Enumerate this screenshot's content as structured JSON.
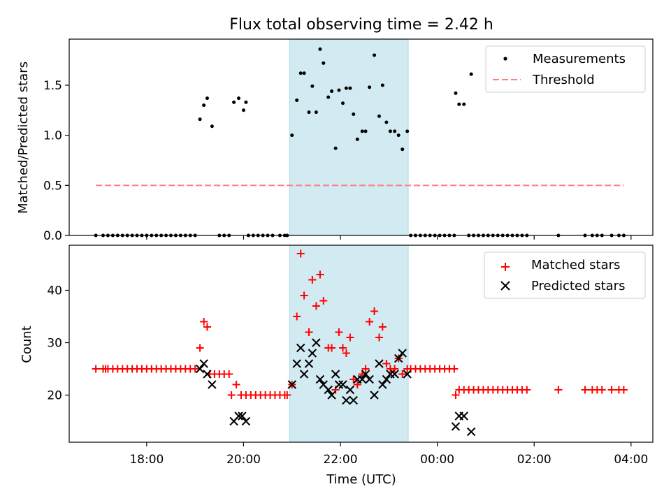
{
  "chart_data": [
    {
      "type": "scatter",
      "title": "Flux total observing time = 2.42 h",
      "xlabel": "",
      "ylabel": "Matched/Predicted stars",
      "ylim": [
        0,
        1.96
      ],
      "yticks": [
        "0.0",
        "0.5",
        "1.0",
        "1.5"
      ],
      "highlight_span": {
        "x0": 20.95,
        "x1": 23.4,
        "color": "#add8e6"
      },
      "legend": {
        "placement": "upper right",
        "entries": [
          "Measurements",
          "Threshold"
        ]
      },
      "threshold": {
        "name": "Threshold",
        "value": 0.5,
        "x": [
          16.95,
          27.85
        ],
        "color": "#ff7f7f"
      },
      "series": [
        {
          "name": "Measurements",
          "color": "#000000",
          "points": [
            [
              16.95,
              0
            ],
            [
              17.1,
              0
            ],
            [
              17.2,
              0
            ],
            [
              17.3,
              0
            ],
            [
              17.4,
              0
            ],
            [
              17.5,
              0
            ],
            [
              17.6,
              0
            ],
            [
              17.7,
              0
            ],
            [
              17.8,
              0
            ],
            [
              17.9,
              0
            ],
            [
              18.0,
              0
            ],
            [
              18.1,
              0
            ],
            [
              18.2,
              0
            ],
            [
              18.3,
              0
            ],
            [
              18.4,
              0
            ],
            [
              18.5,
              0
            ],
            [
              18.6,
              0
            ],
            [
              18.7,
              0
            ],
            [
              18.8,
              0
            ],
            [
              18.9,
              0
            ],
            [
              19.0,
              0
            ],
            [
              19.1,
              1.16
            ],
            [
              19.18,
              1.3
            ],
            [
              19.25,
              1.37
            ],
            [
              19.35,
              1.09
            ],
            [
              19.5,
              0
            ],
            [
              19.6,
              0
            ],
            [
              19.7,
              0
            ],
            [
              19.8,
              1.33
            ],
            [
              19.9,
              1.37
            ],
            [
              20.0,
              1.25
            ],
            [
              20.05,
              1.33
            ],
            [
              20.1,
              0
            ],
            [
              20.2,
              0
            ],
            [
              20.3,
              0
            ],
            [
              20.4,
              0
            ],
            [
              20.5,
              0
            ],
            [
              20.6,
              0
            ],
            [
              20.75,
              0
            ],
            [
              20.85,
              0
            ],
            [
              20.9,
              0
            ],
            [
              21.0,
              1.0
            ],
            [
              21.1,
              1.35
            ],
            [
              21.18,
              1.62
            ],
            [
              21.25,
              1.62
            ],
            [
              21.35,
              1.23
            ],
            [
              21.42,
              1.49
            ],
            [
              21.5,
              1.23
            ],
            [
              21.58,
              1.86
            ],
            [
              21.65,
              1.72
            ],
            [
              21.75,
              1.38
            ],
            [
              21.82,
              1.44
            ],
            [
              21.9,
              0.87
            ],
            [
              21.97,
              1.45
            ],
            [
              22.05,
              1.32
            ],
            [
              22.12,
              1.47
            ],
            [
              22.2,
              1.47
            ],
            [
              22.27,
              1.21
            ],
            [
              22.35,
              0.96
            ],
            [
              22.45,
              1.04
            ],
            [
              22.52,
              1.04
            ],
            [
              22.6,
              1.48
            ],
            [
              22.7,
              1.8
            ],
            [
              22.8,
              1.19
            ],
            [
              22.87,
              1.5
            ],
            [
              22.95,
              1.13
            ],
            [
              23.03,
              1.04
            ],
            [
              23.12,
              1.04
            ],
            [
              23.2,
              1.0
            ],
            [
              23.28,
              0.86
            ],
            [
              23.38,
              1.04
            ],
            [
              23.45,
              0
            ],
            [
              23.55,
              0
            ],
            [
              23.65,
              0
            ],
            [
              23.75,
              0
            ],
            [
              23.85,
              0
            ],
            [
              23.95,
              0
            ],
            [
              24.05,
              0
            ],
            [
              24.15,
              0
            ],
            [
              24.25,
              0
            ],
            [
              24.35,
              0
            ],
            [
              24.38,
              1.42
            ],
            [
              24.45,
              1.31
            ],
            [
              24.55,
              1.31
            ],
            [
              24.7,
              1.61
            ],
            [
              24.65,
              0
            ],
            [
              24.75,
              0
            ],
            [
              24.85,
              0
            ],
            [
              24.95,
              0
            ],
            [
              25.05,
              0
            ],
            [
              25.15,
              0
            ],
            [
              25.25,
              0
            ],
            [
              25.35,
              0
            ],
            [
              25.45,
              0
            ],
            [
              25.55,
              0
            ],
            [
              25.65,
              0
            ],
            [
              25.75,
              0
            ],
            [
              25.85,
              0
            ],
            [
              26.5,
              0
            ],
            [
              27.05,
              0
            ],
            [
              27.2,
              0
            ],
            [
              27.3,
              0
            ],
            [
              27.4,
              0
            ],
            [
              27.6,
              0
            ],
            [
              27.75,
              0
            ],
            [
              27.85,
              0
            ]
          ]
        }
      ]
    },
    {
      "type": "scatter",
      "title": "",
      "xlabel": "Time (UTC)",
      "ylabel": "Count",
      "ylim": [
        11,
        48.6
      ],
      "yticks": [
        "20",
        "30",
        "40"
      ],
      "xticks": [
        "18:00",
        "20:00",
        "22:00",
        "00:00",
        "02:00",
        "04:00"
      ],
      "xlim": [
        16.4,
        28.45
      ],
      "highlight_span": {
        "x0": 20.95,
        "x1": 23.4,
        "color": "#add8e6"
      },
      "legend": {
        "placement": "upper right",
        "entries": [
          "Matched stars",
          "Predicted stars"
        ]
      },
      "series": [
        {
          "name": "Matched stars",
          "marker": "+",
          "color": "#ff0000",
          "points": [
            [
              16.95,
              25
            ],
            [
              17.1,
              25
            ],
            [
              17.15,
              25
            ],
            [
              17.2,
              25
            ],
            [
              17.3,
              25
            ],
            [
              17.4,
              25
            ],
            [
              17.5,
              25
            ],
            [
              17.6,
              25
            ],
            [
              17.7,
              25
            ],
            [
              17.8,
              25
            ],
            [
              17.9,
              25
            ],
            [
              18.0,
              25
            ],
            [
              18.1,
              25
            ],
            [
              18.2,
              25
            ],
            [
              18.3,
              25
            ],
            [
              18.4,
              25
            ],
            [
              18.5,
              25
            ],
            [
              18.6,
              25
            ],
            [
              18.7,
              25
            ],
            [
              18.8,
              25
            ],
            [
              18.9,
              25
            ],
            [
              19.0,
              25
            ],
            [
              19.1,
              29
            ],
            [
              19.18,
              34
            ],
            [
              19.25,
              33
            ],
            [
              19.3,
              24
            ],
            [
              19.4,
              24
            ],
            [
              19.5,
              24
            ],
            [
              19.6,
              24
            ],
            [
              19.7,
              24
            ],
            [
              19.75,
              20
            ],
            [
              19.85,
              22
            ],
            [
              19.95,
              20
            ],
            [
              20.05,
              20
            ],
            [
              20.15,
              20
            ],
            [
              20.25,
              20
            ],
            [
              20.35,
              20
            ],
            [
              20.45,
              20
            ],
            [
              20.55,
              20
            ],
            [
              20.65,
              20
            ],
            [
              20.75,
              20
            ],
            [
              20.85,
              20
            ],
            [
              20.9,
              20
            ],
            [
              21.0,
              22
            ],
            [
              21.1,
              35
            ],
            [
              21.18,
              47
            ],
            [
              21.25,
              39
            ],
            [
              21.35,
              32
            ],
            [
              21.42,
              42
            ],
            [
              21.5,
              37
            ],
            [
              21.58,
              43
            ],
            [
              21.65,
              38
            ],
            [
              21.75,
              29
            ],
            [
              21.82,
              29
            ],
            [
              21.9,
              21
            ],
            [
              21.97,
              32
            ],
            [
              22.05,
              29
            ],
            [
              22.12,
              28
            ],
            [
              22.2,
              31
            ],
            [
              22.27,
              23
            ],
            [
              22.35,
              22
            ],
            [
              22.45,
              24
            ],
            [
              22.52,
              25
            ],
            [
              22.6,
              34
            ],
            [
              22.7,
              36
            ],
            [
              22.8,
              31
            ],
            [
              22.87,
              33
            ],
            [
              22.95,
              26
            ],
            [
              23.03,
              25
            ],
            [
              23.12,
              25
            ],
            [
              23.2,
              27
            ],
            [
              23.28,
              24
            ],
            [
              23.38,
              25
            ],
            [
              23.45,
              25
            ],
            [
              23.55,
              25
            ],
            [
              23.65,
              25
            ],
            [
              23.75,
              25
            ],
            [
              23.85,
              25
            ],
            [
              23.95,
              25
            ],
            [
              24.05,
              25
            ],
            [
              24.15,
              25
            ],
            [
              24.25,
              25
            ],
            [
              24.35,
              25
            ],
            [
              24.38,
              20
            ],
            [
              24.45,
              21
            ],
            [
              24.55,
              21
            ],
            [
              24.65,
              21
            ],
            [
              24.75,
              21
            ],
            [
              24.85,
              21
            ],
            [
              24.95,
              21
            ],
            [
              25.05,
              21
            ],
            [
              25.15,
              21
            ],
            [
              25.25,
              21
            ],
            [
              25.35,
              21
            ],
            [
              25.45,
              21
            ],
            [
              25.55,
              21
            ],
            [
              25.65,
              21
            ],
            [
              25.75,
              21
            ],
            [
              25.85,
              21
            ],
            [
              26.5,
              21
            ],
            [
              27.05,
              21
            ],
            [
              27.2,
              21
            ],
            [
              27.3,
              21
            ],
            [
              27.4,
              21
            ],
            [
              27.6,
              21
            ],
            [
              27.75,
              21
            ],
            [
              27.85,
              21
            ]
          ]
        },
        {
          "name": "Predicted stars",
          "marker": "x",
          "color": "#000000",
          "points": [
            [
              19.1,
              25
            ],
            [
              19.18,
              26
            ],
            [
              19.25,
              24
            ],
            [
              19.35,
              22
            ],
            [
              19.8,
              15
            ],
            [
              19.9,
              16
            ],
            [
              19.97,
              16
            ],
            [
              20.05,
              15
            ],
            [
              21.0,
              22
            ],
            [
              21.1,
              26
            ],
            [
              21.18,
              29
            ],
            [
              21.25,
              24
            ],
            [
              21.35,
              26
            ],
            [
              21.42,
              28
            ],
            [
              21.5,
              30
            ],
            [
              21.58,
              23
            ],
            [
              21.65,
              22
            ],
            [
              21.75,
              21
            ],
            [
              21.82,
              20
            ],
            [
              21.9,
              24
            ],
            [
              21.97,
              22
            ],
            [
              22.05,
              22
            ],
            [
              22.12,
              19
            ],
            [
              22.2,
              21
            ],
            [
              22.27,
              19
            ],
            [
              22.35,
              23
            ],
            [
              22.45,
              23
            ],
            [
              22.52,
              24
            ],
            [
              22.6,
              23
            ],
            [
              22.7,
              20
            ],
            [
              22.8,
              26
            ],
            [
              22.87,
              22
            ],
            [
              22.95,
              23
            ],
            [
              23.03,
              24
            ],
            [
              23.12,
              24
            ],
            [
              23.2,
              27
            ],
            [
              23.28,
              28
            ],
            [
              23.38,
              24
            ],
            [
              24.38,
              14
            ],
            [
              24.45,
              16
            ],
            [
              24.55,
              16
            ],
            [
              24.7,
              13
            ]
          ]
        }
      ]
    }
  ]
}
